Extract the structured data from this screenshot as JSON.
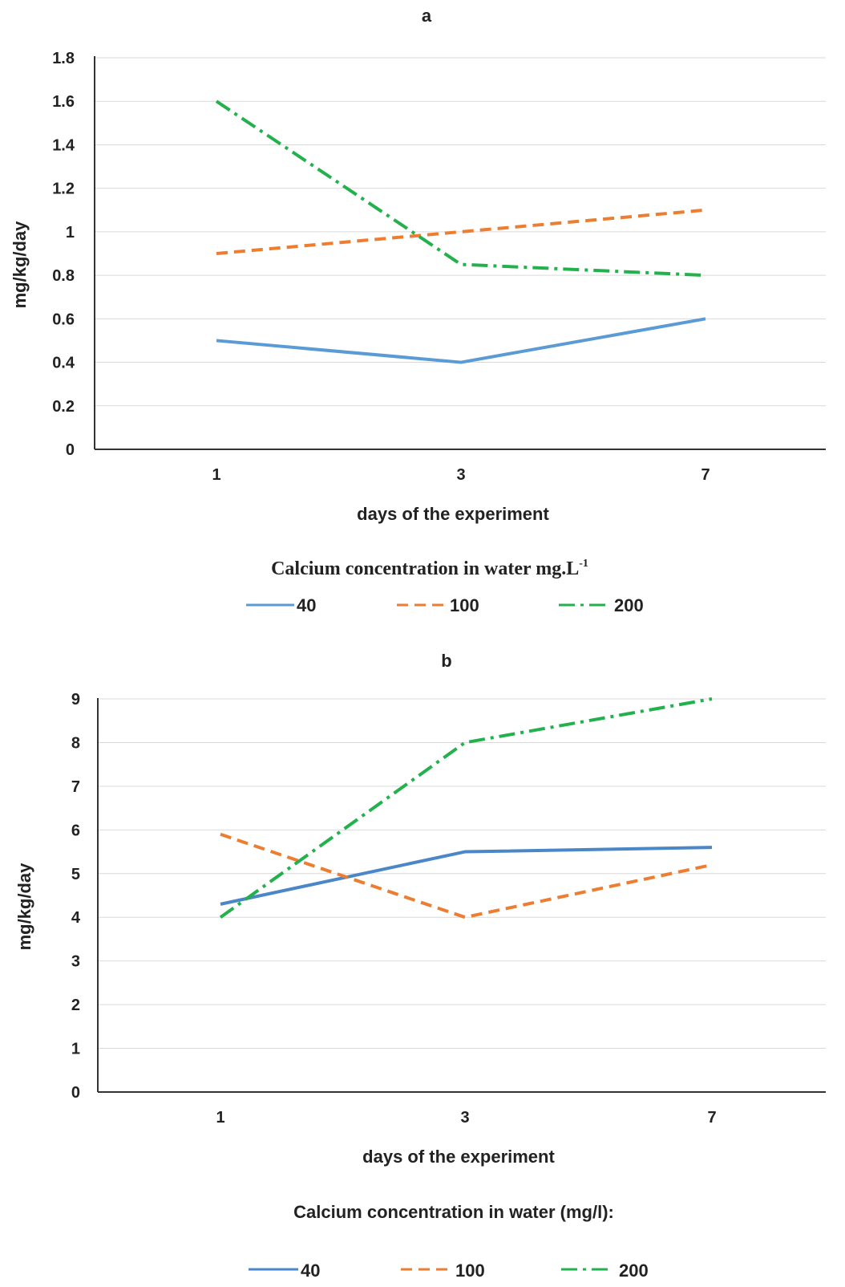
{
  "chart_data": [
    {
      "type": "line",
      "title": "a",
      "xlabel": "days of the experiment",
      "ylabel": "mg/kg/day",
      "categories": [
        "1",
        "3",
        "7"
      ],
      "ylim": [
        0,
        1.8
      ],
      "yticks": [
        "0",
        "0.2",
        "0.4",
        "0.6",
        "0.8",
        "1",
        "1.2",
        "1.4",
        "1.6",
        "1.8"
      ],
      "grid": true,
      "legend_title": "Calcium concentration in water mg.L",
      "legend_title_sup": "-1",
      "legend_placement": "bottom",
      "series": [
        {
          "name": "40",
          "values": [
            0.5,
            0.4,
            0.6
          ],
          "color": "#5b9bd5",
          "dash": "solid"
        },
        {
          "name": "100",
          "values": [
            0.9,
            1.0,
            1.1
          ],
          "color": "#ed7d31",
          "dash": "dash"
        },
        {
          "name": "200",
          "values": [
            1.6,
            0.85,
            0.8
          ],
          "color": "#22b14c",
          "dash": "dashdot"
        }
      ]
    },
    {
      "type": "line",
      "title": "b",
      "xlabel": "days of the experiment",
      "ylabel": "mg/kg/day",
      "categories": [
        "1",
        "3",
        "7"
      ],
      "ylim": [
        0,
        9
      ],
      "yticks": [
        "0",
        "1",
        "2",
        "3",
        "4",
        "5",
        "6",
        "7",
        "8",
        "9"
      ],
      "grid": true,
      "legend_title": "Calcium concentration in water (mg/l):",
      "legend_placement": "bottom",
      "series": [
        {
          "name": "40",
          "values": [
            4.3,
            5.5,
            5.6
          ],
          "color": "#4a86c8",
          "dash": "solid"
        },
        {
          "name": "100",
          "values": [
            5.9,
            4.0,
            5.2
          ],
          "color": "#ed7d31",
          "dash": "dash"
        },
        {
          "name": "200",
          "values": [
            4.0,
            8.0,
            9.0
          ],
          "color": "#22b14c",
          "dash": "dashdot"
        }
      ]
    }
  ]
}
